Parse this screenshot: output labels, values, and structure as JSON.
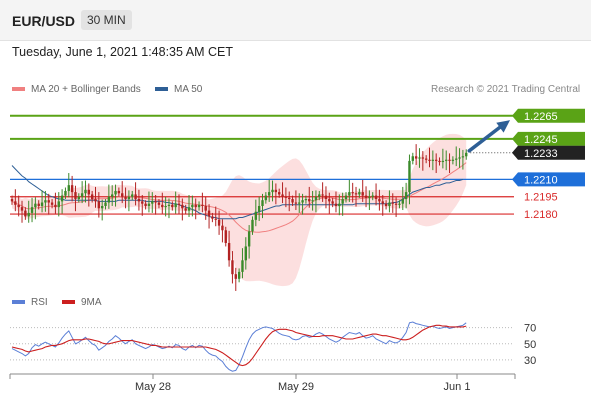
{
  "header": {
    "symbol": "EUR/USD",
    "timeframe": "30 MIN",
    "timestamp": "Tuesday, June 1, 2021 1:48:35 AM CET"
  },
  "legend": {
    "bollinger_label": "MA 20 + Bollinger Bands",
    "ma50_label": "MA 50",
    "copyright": "Research © 2021 Trading Central",
    "rsi_label": "RSI",
    "rsi_ma_label": "9MA"
  },
  "colors": {
    "candle_up": "#3a8a2a",
    "candle_down": "#b22222",
    "bollinger_fill": "#fbd4d4",
    "ma20": "#f08080",
    "ma50": "#2e5f96",
    "resistance": "#5aa316",
    "pivot": "#1e6fd9",
    "support": "#d92a2a",
    "current": "#222222",
    "arrow": "#2e5f96",
    "rsi": "#5b7fd6",
    "rsi_ma": "#cc1f1f"
  },
  "chart_data": [
    {
      "type": "candlestick",
      "x_ticks": [
        "May 28",
        "May 29",
        "Jun 1"
      ],
      "y_range": [
        1.211,
        1.2283
      ],
      "levels": [
        {
          "label": "1.2265",
          "value": 1.2265,
          "kind": "resistance"
        },
        {
          "label": "1.2245",
          "value": 1.2245,
          "kind": "resistance"
        },
        {
          "label": "1.2233",
          "value": 1.2233,
          "kind": "current"
        },
        {
          "label": "1.2210",
          "value": 1.221,
          "kind": "pivot"
        },
        {
          "label": "1.2195",
          "value": 1.2195,
          "kind": "support"
        },
        {
          "label": "1.2180",
          "value": 1.218,
          "kind": "support"
        }
      ],
      "projection": {
        "from": 1.2233,
        "to": 1.2263
      },
      "close": [
        1.2191,
        1.2188,
        1.2186,
        1.2183,
        1.2178,
        1.2181,
        1.2186,
        1.2189,
        1.2187,
        1.219,
        1.2192,
        1.219,
        1.2188,
        1.2186,
        1.2191,
        1.2196,
        1.22,
        1.2205,
        1.2199,
        1.2193,
        1.2195,
        1.2198,
        1.2201,
        1.2197,
        1.2193,
        1.2191,
        1.2185,
        1.2187,
        1.219,
        1.2195,
        1.2197,
        1.22,
        1.2198,
        1.2195,
        1.2193,
        1.2195,
        1.2197,
        1.2193,
        1.2191,
        1.2189,
        1.2187,
        1.2189,
        1.2191,
        1.219,
        1.2188,
        1.2186,
        1.2187,
        1.2188,
        1.2186,
        1.2189,
        1.2188,
        1.2185,
        1.2183,
        1.2186,
        1.2188,
        1.2186,
        1.2188,
        1.2187,
        1.2183,
        1.2178,
        1.2176,
        1.2175,
        1.217,
        1.2166,
        1.2155,
        1.214,
        1.2128,
        1.2124,
        1.213,
        1.214,
        1.2152,
        1.2165,
        1.2175,
        1.2182,
        1.2187,
        1.2192,
        1.2196,
        1.2199,
        1.2201,
        1.2199,
        1.2197,
        1.2195,
        1.2194,
        1.2193,
        1.219,
        1.2189,
        1.219,
        1.2192,
        1.2193,
        1.2191,
        1.2192,
        1.2195,
        1.2197,
        1.2196,
        1.2193,
        1.2191,
        1.2189,
        1.2187,
        1.2189,
        1.2193,
        1.2196,
        1.2199,
        1.2198,
        1.2197,
        1.2199,
        1.2196,
        1.2194,
        1.2195,
        1.2196,
        1.2193,
        1.2191,
        1.2189,
        1.2187,
        1.219,
        1.2189,
        1.2188,
        1.2189,
        1.2193,
        1.2199,
        1.2226,
        1.223,
        1.2228,
        1.2229,
        1.2228,
        1.2227,
        1.2226,
        1.2227,
        1.2226,
        1.2225,
        1.2226,
        1.2227,
        1.2226,
        1.2227,
        1.2228,
        1.2229,
        1.223,
        1.2233
      ],
      "ma50": [
        1.2222,
        1.2219,
        1.2216,
        1.2213,
        1.2211,
        1.2208,
        1.2206,
        1.2204,
        1.2202,
        1.22,
        1.2198,
        1.2196,
        1.2195,
        1.2194,
        1.2193,
        1.2193,
        1.2192,
        1.2192,
        1.2192,
        1.2192,
        1.2192,
        1.2192,
        1.2192,
        1.2192,
        1.2192,
        1.2192,
        1.2191,
        1.2191,
        1.2191,
        1.2191,
        1.2191,
        1.2191,
        1.2192,
        1.2192,
        1.2192,
        1.2192,
        1.2192,
        1.2192,
        1.2192,
        1.2192,
        1.2191,
        1.2191,
        1.2191,
        1.2191,
        1.2191,
        1.2191,
        1.219,
        1.219,
        1.2189,
        1.2189,
        1.2188,
        1.2187,
        1.2186,
        1.2185,
        1.2184,
        1.2183,
        1.2181,
        1.218,
        1.2179,
        1.2178,
        1.2177,
        1.2177,
        1.2176,
        1.2176,
        1.2176,
        1.2176,
        1.2176,
        1.2176,
        1.2177,
        1.2177,
        1.2178,
        1.2179,
        1.218,
        1.2181,
        1.2182,
        1.2183,
        1.2184,
        1.2185,
        1.2186,
        1.2187,
        1.2187,
        1.2188,
        1.2188,
        1.2188,
        1.2188,
        1.2188,
        1.2188,
        1.2188,
        1.2188,
        1.2188,
        1.2188,
        1.2188,
        1.2188,
        1.2188,
        1.2188,
        1.2188,
        1.2188,
        1.2188,
        1.2188,
        1.2188,
        1.2188,
        1.2188,
        1.2188,
        1.2189,
        1.2189,
        1.2189,
        1.2189,
        1.2189,
        1.2189,
        1.2189,
        1.2189,
        1.2189,
        1.2189,
        1.2189,
        1.219,
        1.219,
        1.2191,
        1.2193,
        1.2195,
        1.2197,
        1.2199,
        1.22,
        1.2201,
        1.2202,
        1.2203,
        1.2203,
        1.2204,
        1.2205,
        1.2205,
        1.2206,
        1.2207,
        1.2207,
        1.2208,
        1.2209,
        1.2209,
        1.221
      ]
    },
    {
      "type": "line",
      "x_ticks": [
        "May 28",
        "May 29",
        "Jun 1"
      ],
      "y_ticks": [
        30,
        50,
        70
      ],
      "y_range": [
        15,
        82
      ],
      "rsi": [
        44,
        42,
        40,
        38,
        35,
        38,
        45,
        49,
        47,
        50,
        52,
        50,
        48,
        46,
        51,
        57,
        62,
        66,
        58,
        50,
        52,
        55,
        58,
        54,
        50,
        48,
        42,
        45,
        48,
        53,
        56,
        60,
        57,
        53,
        50,
        53,
        55,
        50,
        48,
        46,
        44,
        46,
        49,
        48,
        46,
        44,
        45,
        47,
        45,
        49,
        48,
        44,
        42,
        46,
        48,
        45,
        48,
        47,
        42,
        38,
        36,
        35,
        31,
        28,
        22,
        18,
        16,
        17,
        24,
        34,
        45,
        55,
        62,
        66,
        68,
        70,
        71,
        70,
        69,
        66,
        63,
        61,
        60,
        59,
        56,
        55,
        56,
        59,
        60,
        58,
        59,
        62,
        64,
        62,
        59,
        56,
        54,
        52,
        54,
        58,
        61,
        64,
        63,
        62,
        64,
        60,
        57,
        58,
        60,
        56,
        54,
        52,
        50,
        54,
        52,
        51,
        53,
        58,
        64,
        76,
        77,
        75,
        74,
        73,
        72,
        71,
        72,
        70,
        69,
        70,
        71,
        69,
        70,
        71,
        72,
        73,
        76
      ],
      "rsi_ma": [
        46,
        45,
        44,
        43,
        41,
        40,
        41,
        42,
        43,
        44,
        46,
        47,
        48,
        48,
        49,
        50,
        52,
        54,
        55,
        55,
        55,
        55,
        56,
        56,
        55,
        54,
        53,
        51,
        50,
        50,
        51,
        52,
        53,
        54,
        54,
        54,
        54,
        53,
        52,
        51,
        50,
        49,
        48,
        48,
        47,
        46,
        46,
        46,
        46,
        46,
        46,
        46,
        46,
        46,
        46,
        46,
        46,
        46,
        46,
        45,
        44,
        43,
        41,
        39,
        36,
        33,
        30,
        27,
        24,
        23,
        24,
        27,
        32,
        38,
        44,
        50,
        56,
        61,
        65,
        67,
        68,
        68,
        68,
        67,
        66,
        64,
        63,
        62,
        61,
        60,
        59,
        59,
        59,
        60,
        60,
        60,
        60,
        59,
        58,
        57,
        56,
        56,
        56,
        57,
        58,
        59,
        60,
        61,
        62,
        62,
        61,
        60,
        60,
        59,
        58,
        57,
        56,
        55,
        55,
        56,
        58,
        61,
        64,
        67,
        69,
        71,
        72,
        73,
        73,
        72,
        72,
        71,
        71,
        71,
        71,
        71,
        72
      ]
    }
  ]
}
